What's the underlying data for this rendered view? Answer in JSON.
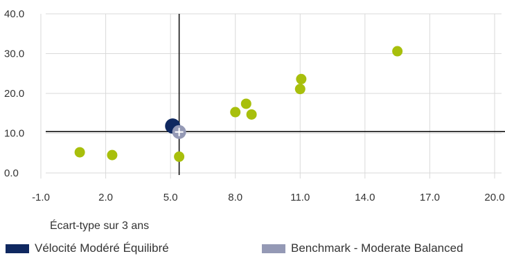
{
  "chart_data": {
    "type": "scatter",
    "xlabel": "Écart-type sur 3 ans",
    "xlim": [
      -1.0,
      20.0
    ],
    "ylim": [
      0.0,
      40.0
    ],
    "x_ticks": [
      "-1.0",
      "2.0",
      "5.0",
      "8.0",
      "11.0",
      "14.0",
      "17.0",
      "20.0"
    ],
    "y_ticks": [
      "0.0",
      "10.0",
      "20.0",
      "30.0",
      "40.0"
    ],
    "grid": true,
    "crosshair": {
      "x": 5.4,
      "y": 10.4
    },
    "series": [
      {
        "role": "peers",
        "color": "#a8bf0c",
        "points": [
          {
            "x": 0.8,
            "y": 5.2
          },
          {
            "x": 2.3,
            "y": 4.5
          },
          {
            "x": 5.4,
            "y": 4.1
          },
          {
            "x": 8.0,
            "y": 15.3
          },
          {
            "x": 8.5,
            "y": 17.4
          },
          {
            "x": 8.75,
            "y": 14.7
          },
          {
            "x": 11.0,
            "y": 21.1
          },
          {
            "x": 11.05,
            "y": 23.6
          },
          {
            "x": 15.5,
            "y": 30.6
          }
        ]
      },
      {
        "name": "Vélocité Modéré Équilibré",
        "color": "#0f2860",
        "points": [
          {
            "x": 5.1,
            "y": 11.8
          }
        ]
      },
      {
        "name": "Benchmark - Moderate Balanced",
        "color": "#9499b5",
        "points": [
          {
            "x": 5.4,
            "y": 10.3
          }
        ]
      }
    ]
  }
}
